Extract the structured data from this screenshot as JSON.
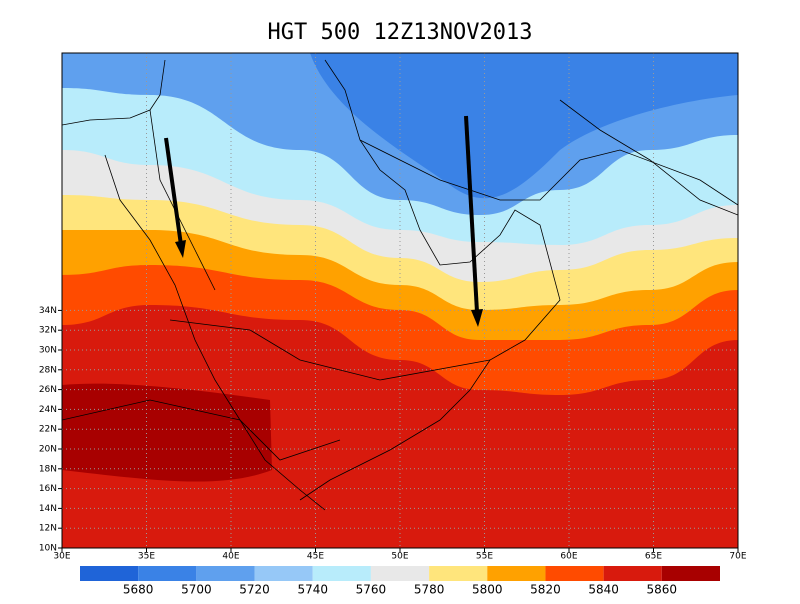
{
  "title": "HGT 500 12Z13NOV2013",
  "lat_labels": [
    "10N",
    "12N",
    "14N",
    "16N",
    "18N",
    "20N",
    "22N",
    "24N",
    "26N",
    "28N",
    "30N",
    "32N",
    "34N"
  ],
  "lon_labels": [
    "30E",
    "35E",
    "40E",
    "45E",
    "50E",
    "55E",
    "60E",
    "65E",
    "70E"
  ],
  "colorbar": {
    "levels": [
      5680,
      5700,
      5720,
      5740,
      5760,
      5780,
      5800,
      5820,
      5840,
      5860
    ],
    "colors": [
      "#1f64d8",
      "#3a82e6",
      "#5fa0ee",
      "#96c8f7",
      "#b8ecfb",
      "#e8e8e8",
      "#ffe57c",
      "#ffa100",
      "#ff4b00",
      "#d81a0d",
      "#a80000"
    ]
  }
}
